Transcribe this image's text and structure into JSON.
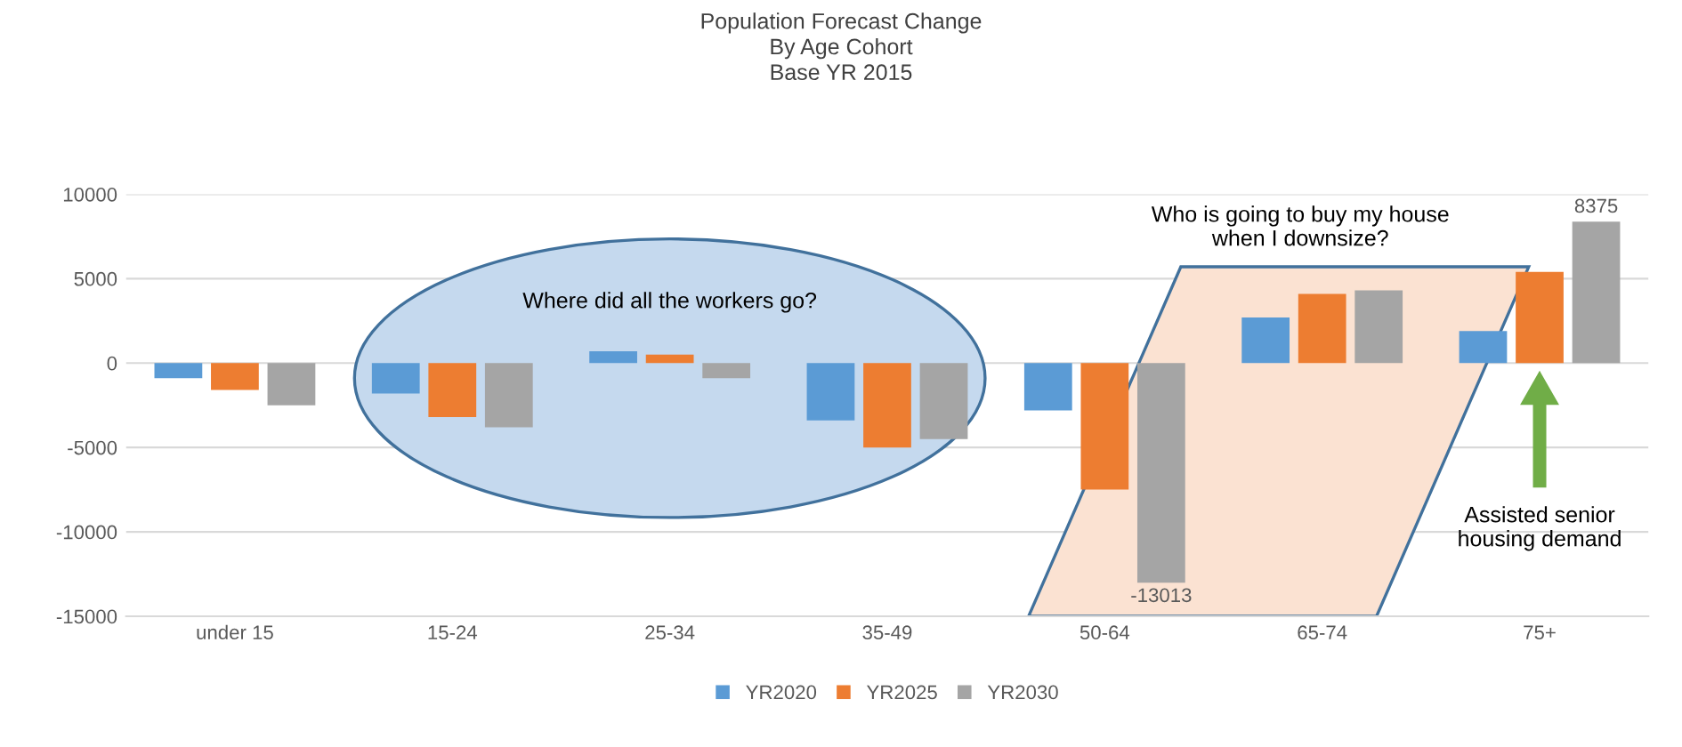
{
  "chart_data": {
    "type": "bar",
    "title": "Population Forecast Change\nBy Age Cohort\nBase YR 2015",
    "categories": [
      "under 15",
      "15-24",
      "25-34",
      "35-49",
      "50-64",
      "65-74",
      "75+"
    ],
    "series": [
      {
        "name": "YR2020",
        "color": "#5b9bd5",
        "values": [
          -900,
          -1800,
          700,
          -3400,
          -2800,
          2700,
          1900
        ]
      },
      {
        "name": "YR2025",
        "color": "#ed7d31",
        "values": [
          -1600,
          -3200,
          500,
          -5000,
          -7500,
          4100,
          5400
        ]
      },
      {
        "name": "YR2030",
        "color": "#a5a5a5",
        "values": [
          -2500,
          -3800,
          -900,
          -4500,
          -13013,
          4300,
          8375
        ],
        "value_labels": [
          null,
          null,
          null,
          null,
          "-13013",
          null,
          "8375"
        ]
      }
    ],
    "ylim": [
      -15000,
      10000
    ],
    "yticks": [
      -15000,
      -10000,
      -5000,
      0,
      5000,
      10000
    ],
    "grid": "y",
    "legend": "bottom",
    "annotations": [
      "Where did all the workers go?",
      "Who is going to buy my house\nwhen I downsize?",
      "Assisted senior\nhousing demand"
    ]
  }
}
